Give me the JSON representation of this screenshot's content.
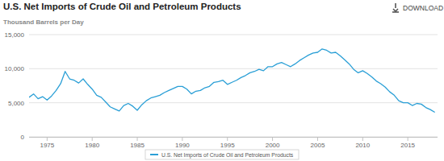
{
  "chart_data": {
    "type": "line",
    "title": "U.S. Net Imports of Crude Oil and Petroleum Products",
    "y_label": "Thousand Barrels per Day",
    "download_label": "DOWNLOAD",
    "x": [
      1973,
      1973.5,
      1974,
      1974.5,
      1975,
      1975.5,
      1976,
      1976.5,
      1977,
      1977.5,
      1978,
      1978.5,
      1979,
      1979.5,
      1980,
      1980.5,
      1981,
      1981.5,
      1982,
      1982.5,
      1983,
      1983.5,
      1984,
      1984.5,
      1985,
      1985.5,
      1986,
      1986.5,
      1987,
      1987.5,
      1988,
      1988.5,
      1989,
      1989.5,
      1990,
      1990.5,
      1991,
      1991.5,
      1992,
      1992.5,
      1993,
      1993.5,
      1994,
      1994.5,
      1995,
      1995.5,
      1996,
      1996.5,
      1997,
      1997.5,
      1998,
      1998.5,
      1999,
      1999.5,
      2000,
      2000.5,
      2001,
      2001.5,
      2002,
      2002.5,
      2003,
      2003.5,
      2004,
      2004.5,
      2005,
      2005.5,
      2006,
      2006.5,
      2007,
      2007.5,
      2008,
      2008.5,
      2009,
      2009.5,
      2010,
      2010.5,
      2011,
      2011.5,
      2012,
      2012.5,
      2013,
      2013.5,
      2014,
      2014.5,
      2015,
      2015.5,
      2016,
      2016.5,
      2017,
      2017.5,
      2018
    ],
    "series": [
      {
        "name": "U.S. Net Imports of Crude Oil and Petroleum Products",
        "color": "#2a9fd6",
        "values": [
          5800,
          6300,
          5600,
          5900,
          5400,
          6000,
          6800,
          7800,
          9600,
          8500,
          8300,
          7900,
          8500,
          7700,
          7000,
          6100,
          5800,
          5100,
          4400,
          4100,
          3800,
          4600,
          4900,
          4500,
          3900,
          4700,
          5300,
          5700,
          5900,
          6100,
          6500,
          6800,
          7100,
          7400,
          7400,
          7000,
          6300,
          6700,
          6800,
          7200,
          7400,
          8000,
          8100,
          8300,
          7700,
          8000,
          8300,
          8700,
          9000,
          9400,
          9600,
          9900,
          9700,
          10300,
          10300,
          10700,
          10900,
          10600,
          10300,
          10700,
          11200,
          11600,
          12000,
          12300,
          12400,
          12900,
          12700,
          12300,
          12400,
          11900,
          11300,
          10700,
          9900,
          9400,
          9700,
          9300,
          8800,
          8200,
          7800,
          7300,
          6600,
          6100,
          5300,
          5000,
          5000,
          4600,
          4900,
          4800,
          4300,
          4000,
          3600
        ]
      }
    ],
    "xlim": [
      1973,
      2018.3
    ],
    "ylim": [
      0,
      15000
    ],
    "xticks": [
      1975,
      1980,
      1985,
      1990,
      1995,
      2000,
      2005,
      2010,
      2015
    ],
    "yticks": [
      0,
      {
        "value": 5000,
        "label": "5,000"
      },
      {
        "value": 10000,
        "label": "10,000"
      },
      {
        "value": 15000,
        "label": "15,000"
      }
    ],
    "grid": true,
    "legend": "bottom"
  }
}
